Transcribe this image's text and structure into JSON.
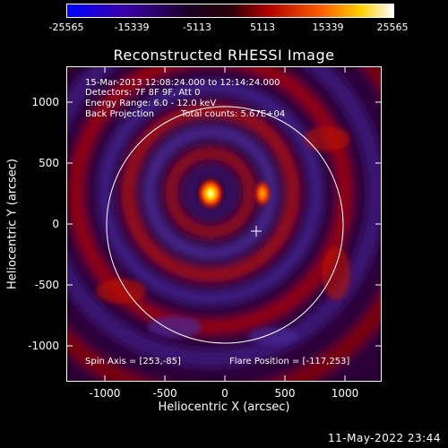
{
  "colorbar": {
    "ticks": [
      "-25565",
      "-15339",
      "-5113",
      "5113",
      "15339",
      "25565"
    ]
  },
  "title": "Reconstructed RHESSI Image",
  "info": {
    "line1": "15-Mar-2013 12:08:24.000 to 12:14:24.000",
    "line2": "Detectors: 7F 8F 9F, Att 0",
    "line3": "Energy Range: 6.0 - 12.0 keV",
    "line4a": "Back Projection",
    "line4b": "Total counts: 5.67E+04",
    "spin_axis": "Spin Axis = [253,-85]",
    "flare_position": "Flare Position = [-117,253]"
  },
  "axes": {
    "xlabel": "Heliocentric X (arcsec)",
    "ylabel": "Heliocentric Y (arcsec)",
    "xticks": [
      "-1000",
      "-500",
      "0",
      "500",
      "1000"
    ],
    "yticks": [
      "1000",
      "500",
      "0",
      "-500",
      "-1000"
    ]
  },
  "footer": "11-May-2022 23:44",
  "colors": {
    "background": "#000000",
    "foreground": "#ffffff"
  }
}
